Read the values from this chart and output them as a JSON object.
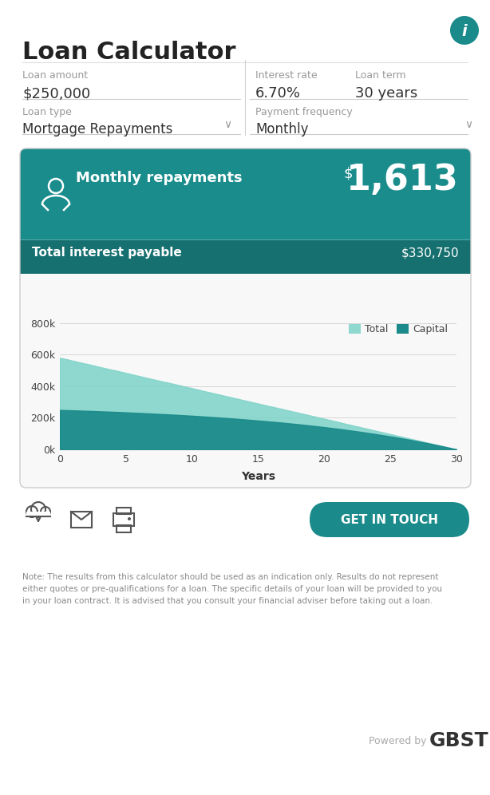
{
  "title": "Loan Calculator",
  "bg_color": "#ffffff",
  "teal_color": "#1a8a8a",
  "teal_light_color": "#7dd3c8",
  "gray_label_color": "#999999",
  "dark_text_color": "#333333",
  "loan_amount_label": "Loan amount",
  "loan_amount_value": "$250,000",
  "interest_rate_label": "Interest rate",
  "interest_rate_value": "6.70%",
  "loan_term_label": "Loan term",
  "loan_term_value": "30 years",
  "loan_type_label": "Loan type",
  "loan_type_value": "Mortgage Repayments",
  "payment_freq_label": "Payment frequency",
  "payment_freq_value": "Monthly",
  "monthly_repayments_label": "Monthly repayments",
  "monthly_repayments_dollar": "$",
  "monthly_repayments_value": "1,613",
  "total_interest_label": "Total interest payable",
  "total_interest_value": "$330,750",
  "legend_total": "Total",
  "legend_capital": "Capital",
  "chart_xlabel": "Years",
  "chart_yticks": [
    0,
    200000,
    400000,
    600000,
    800000
  ],
  "chart_ytick_labels": [
    "0k",
    "200k",
    "400k",
    "600k",
    "800k"
  ],
  "chart_xticks": [
    0,
    5,
    10,
    15,
    20,
    25,
    30
  ],
  "chart_xlim": [
    0,
    30
  ],
  "chart_ylim": [
    0,
    850000
  ],
  "note_text": "Note: The results from this calculator should be used as an indication only. Results do not represent\neither quotes or pre-qualifications for a loan. The specific details of your loan will be provided to you\nin your loan contract. It is advised that you consult your financial adviser before taking out a loan.",
  "powered_by": "Powered by",
  "gbst_text": "GBST",
  "get_in_touch": "GET IN TOUCH",
  "header_teal": "#1a8c8c",
  "strip_teal": "#177070",
  "card_border_color": "#cccccc",
  "chart_bg": "#f8f8f8"
}
